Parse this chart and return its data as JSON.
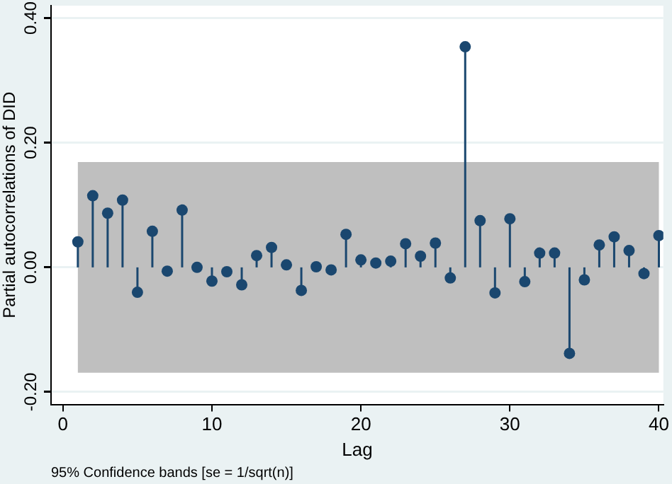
{
  "chart_data": {
    "type": "lollipop",
    "xlabel": "Lag",
    "ylabel": "Partial autocorrelations of DID",
    "x": [
      1,
      2,
      3,
      4,
      5,
      6,
      7,
      8,
      9,
      10,
      11,
      12,
      13,
      14,
      15,
      16,
      17,
      18,
      19,
      20,
      21,
      22,
      23,
      24,
      25,
      26,
      27,
      28,
      29,
      30,
      31,
      32,
      33,
      34,
      35,
      36,
      37,
      38,
      39,
      40
    ],
    "series": [
      {
        "color": "#1a476f",
        "values": [
          0.041,
          0.115,
          0.087,
          0.108,
          -0.04,
          0.058,
          -0.006,
          0.092,
          0.0,
          -0.022,
          -0.007,
          -0.028,
          0.019,
          0.032,
          0.004,
          -0.037,
          0.001,
          -0.004,
          0.053,
          0.012,
          0.007,
          0.01,
          0.038,
          0.018,
          0.039,
          -0.017,
          0.354,
          0.075,
          -0.041,
          0.078,
          -0.023,
          0.023,
          0.023,
          -0.138,
          -0.02,
          0.036,
          0.049,
          0.027,
          -0.01,
          0.051
        ]
      }
    ],
    "xlim": [
      -0.8,
      40.3
    ],
    "xticks": [
      0,
      10,
      20,
      30,
      40
    ],
    "ylim": [
      -0.22,
      0.42
    ],
    "yticks": [
      {
        "value": -0.2,
        "label": "-0.20"
      },
      {
        "value": 0,
        "label": "0.00"
      },
      {
        "value": 0.2,
        "label": "0.20"
      },
      {
        "value": 0.4,
        "label": "0.40"
      }
    ],
    "bands": [
      {
        "axis": "y",
        "from": -0.169,
        "to": 0.169,
        "color": "#bfbfbf"
      }
    ],
    "annotations": [
      "95% Confidence bands [se = 1/sqrt(n)]"
    ],
    "grid": "y",
    "legend": false,
    "marker": "circle"
  }
}
